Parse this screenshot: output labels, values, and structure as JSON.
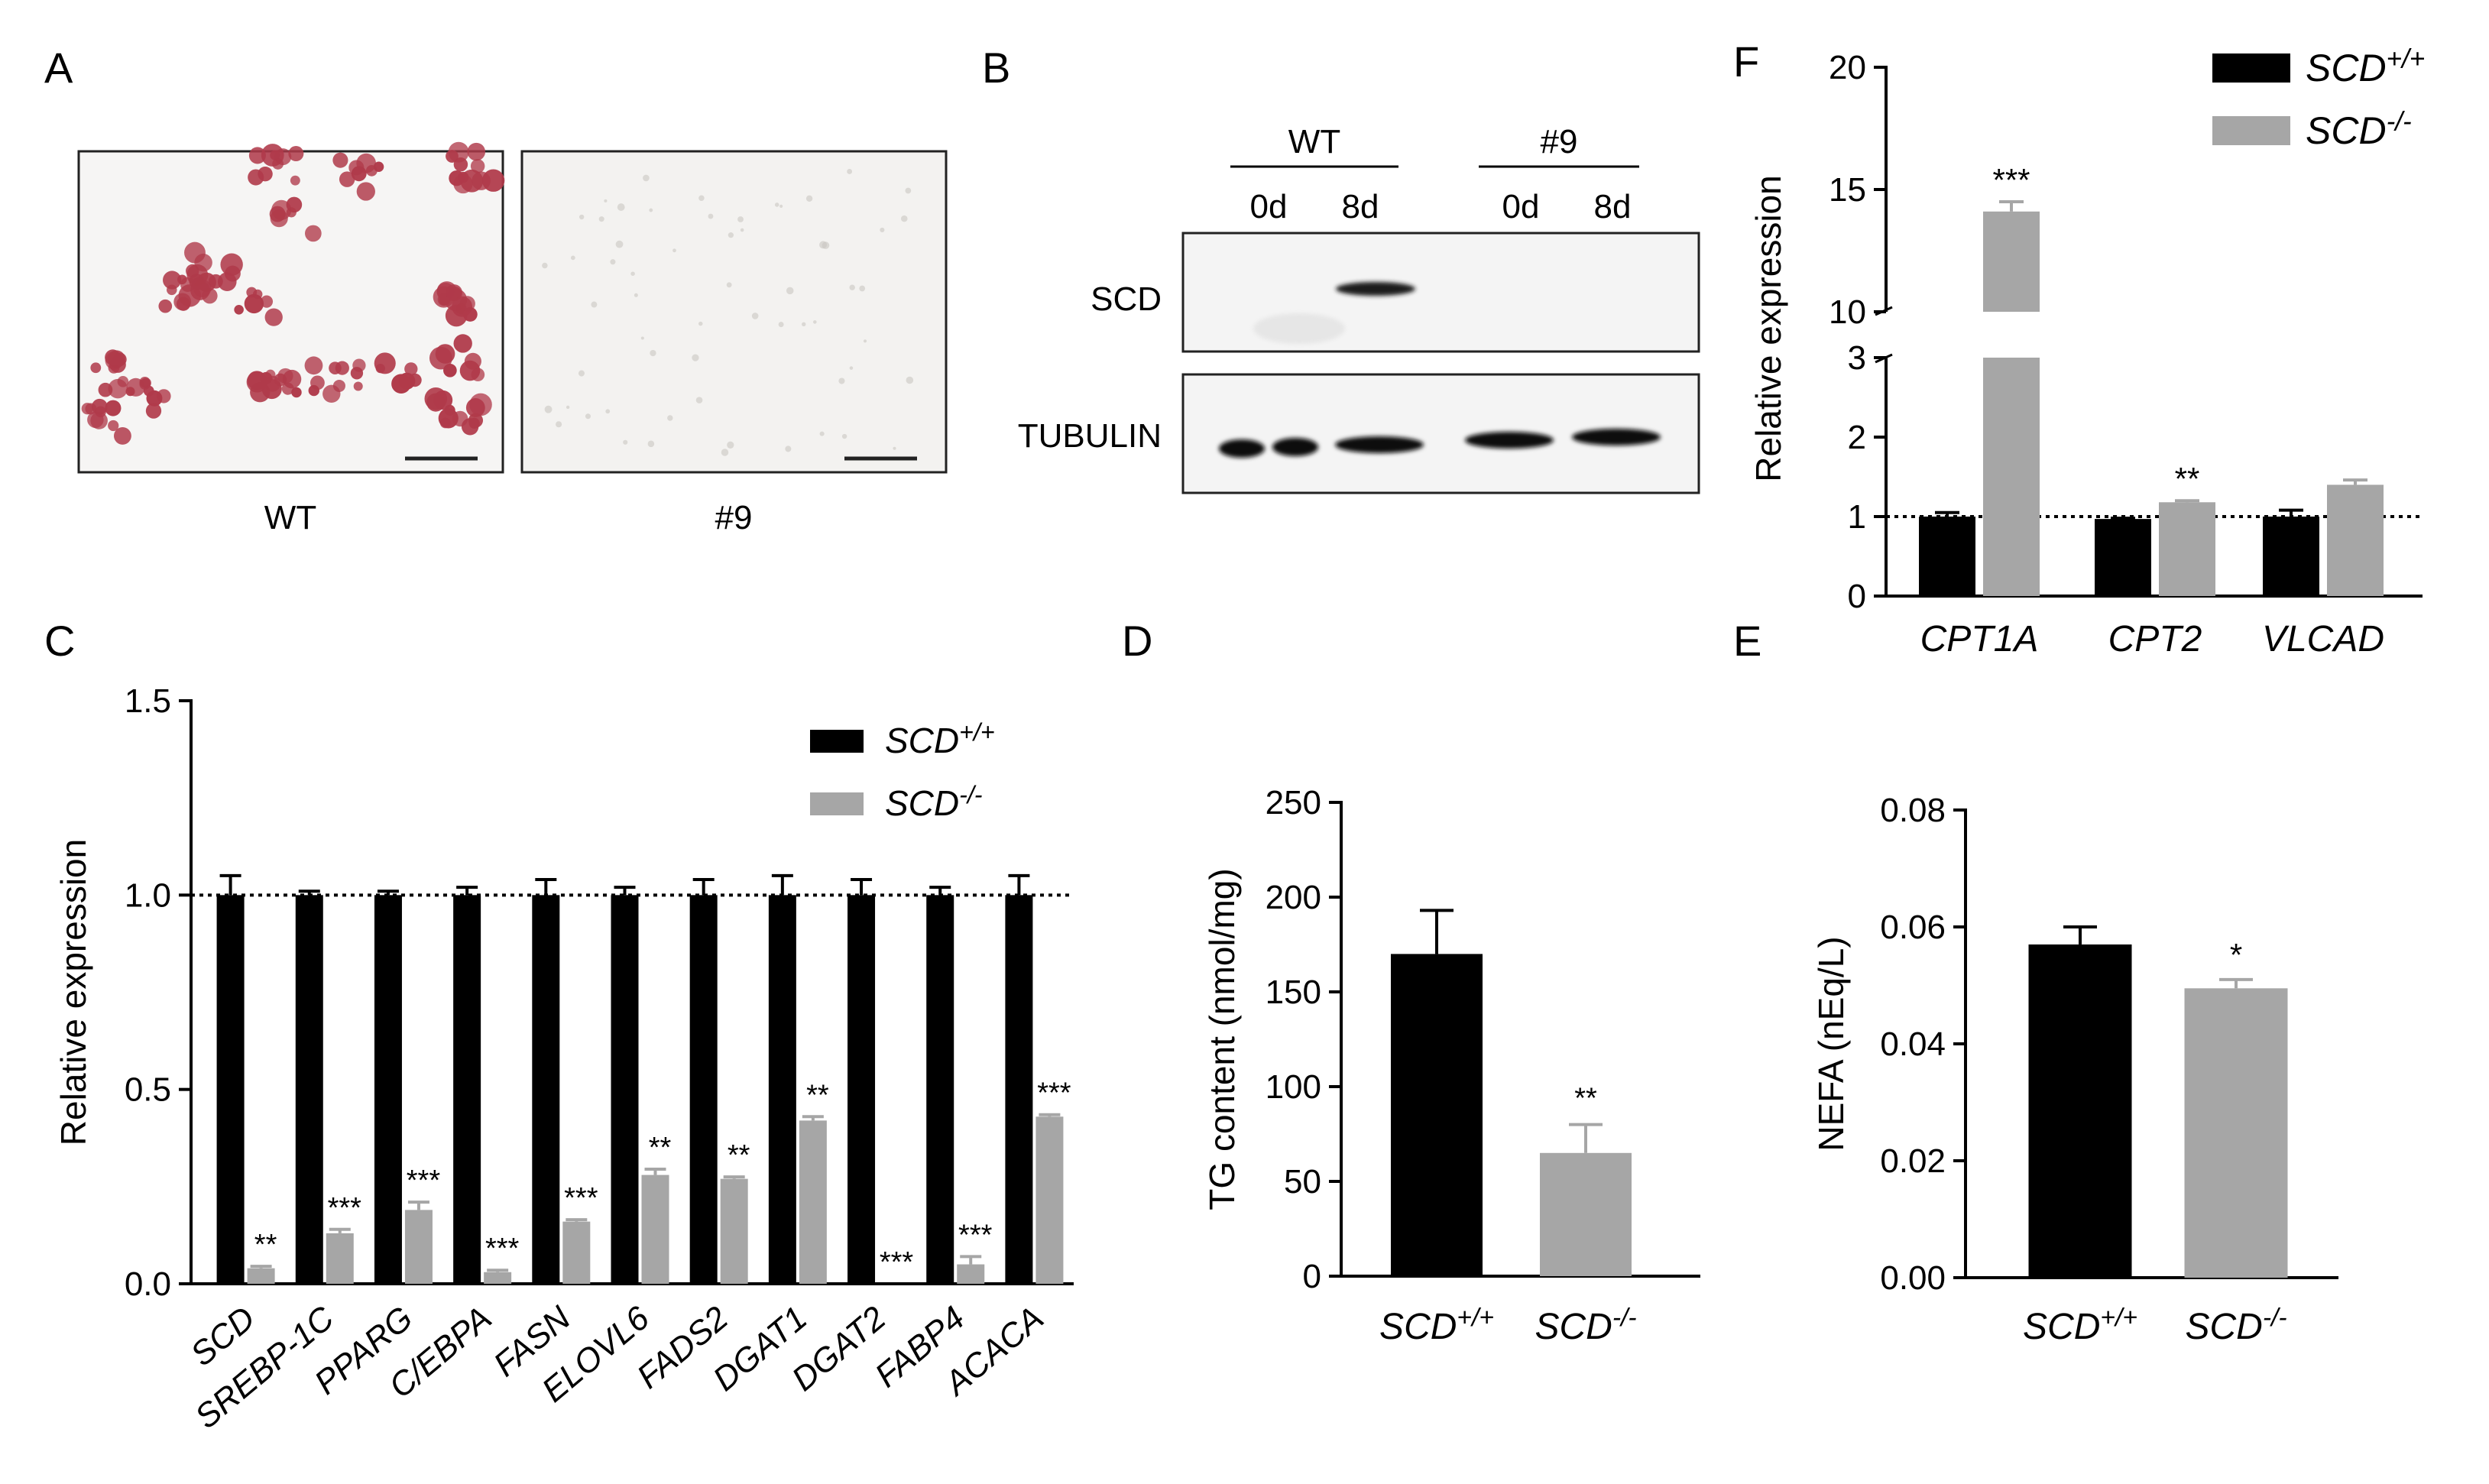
{
  "colors": {
    "wt": "#000000",
    "ko": "#a6a6a6",
    "stain": "#b03a4a"
  },
  "panels": {
    "A": {
      "letter": "A",
      "images": [
        {
          "label": "WT",
          "content": "oil red O stained differentiated cells"
        },
        {
          "label": "#9",
          "content": "unstained cells"
        }
      ]
    },
    "B": {
      "letter": "B",
      "groups": [
        {
          "label": "WT",
          "days": [
            "0d",
            "8d"
          ]
        },
        {
          "label": "#9",
          "days": [
            "0d",
            "8d"
          ]
        }
      ],
      "rows": [
        "SCD",
        "TUBULIN"
      ]
    }
  },
  "chart_data": [
    {
      "id": "C",
      "letter": "C",
      "type": "bar",
      "ylabel": "Relative expression",
      "ylim": [
        0,
        1.5
      ],
      "yticks": [
        0.0,
        0.5,
        1.0,
        1.5
      ],
      "ytick_labels": [
        "0.0",
        "0.5",
        "1.0",
        "1.5"
      ],
      "reference_line": 1.0,
      "categories": [
        "SCD",
        "SREBP-1C",
        "PPARG",
        "C/EBPA",
        "FASN",
        "ELOVL6",
        "FADS2",
        "DGAT1",
        "DGAT2",
        "FABP4",
        "ACACA"
      ],
      "series": [
        {
          "name": "SCD+/+",
          "base": "SCD",
          "sup": "+/+",
          "color": "#000000",
          "values": [
            1.0,
            1.0,
            1.0,
            1.0,
            1.0,
            1.0,
            1.0,
            1.0,
            1.0,
            1.0,
            1.0
          ],
          "errors": [
            0.05,
            0.01,
            0.01,
            0.02,
            0.04,
            0.02,
            0.04,
            0.05,
            0.04,
            0.02,
            0.05
          ]
        },
        {
          "name": "SCD-/-",
          "base": "SCD",
          "sup": "-/-",
          "color": "#a6a6a6",
          "values": [
            0.04,
            0.13,
            0.19,
            0.03,
            0.16,
            0.28,
            0.27,
            0.42,
            0.0,
            0.05,
            0.43
          ],
          "errors": [
            0.005,
            0.01,
            0.02,
            0.005,
            0.005,
            0.015,
            0.005,
            0.01,
            0.0,
            0.02,
            0.005
          ]
        }
      ],
      "significance": [
        "**",
        "***",
        "***",
        "***",
        "***",
        "**",
        "**",
        "**",
        "***",
        "***",
        "***"
      ],
      "legend": "top-right"
    },
    {
      "id": "D",
      "letter": "D",
      "type": "bar",
      "ylabel": "TG content (nmol/mg)",
      "ylim": [
        0,
        250
      ],
      "yticks": [
        0,
        50,
        100,
        150,
        200,
        250
      ],
      "ytick_labels": [
        "0",
        "50",
        "100",
        "150",
        "200",
        "250"
      ],
      "categories": [
        {
          "base": "SCD",
          "sup": "+/+"
        },
        {
          "base": "SCD",
          "sup": "-/-"
        }
      ],
      "values": [
        170,
        65
      ],
      "errors": [
        23,
        15
      ],
      "colors": [
        "#000000",
        "#a6a6a6"
      ],
      "significance": [
        "",
        "**"
      ]
    },
    {
      "id": "E",
      "letter": "E",
      "type": "bar",
      "ylabel": "NEFA (nEq/L)",
      "ylim": [
        0,
        0.08
      ],
      "yticks": [
        0,
        0.02,
        0.04,
        0.06,
        0.08
      ],
      "ytick_labels": [
        "0.00",
        "0.02",
        "0.04",
        "0.06",
        "0.08"
      ],
      "categories": [
        {
          "base": "SCD",
          "sup": "+/+"
        },
        {
          "base": "SCD",
          "sup": "-/-"
        }
      ],
      "values": [
        0.057,
        0.0495
      ],
      "errors": [
        0.003,
        0.0015
      ],
      "colors": [
        "#000000",
        "#a6a6a6"
      ],
      "significance": [
        "",
        "*"
      ]
    },
    {
      "id": "F",
      "letter": "F",
      "type": "bar",
      "ylabel": "Relative expression",
      "axis_break": [
        3,
        10
      ],
      "ylim": [
        0,
        20
      ],
      "yticks": [
        0,
        1,
        2,
        3,
        10,
        15,
        20
      ],
      "ytick_labels": [
        "0",
        "1",
        "2",
        "3",
        "10",
        "15",
        "20"
      ],
      "reference_line": 1.0,
      "categories": [
        "CPT1A",
        "CPT2",
        "VLCAD"
      ],
      "series": [
        {
          "name": "SCD+/+",
          "base": "SCD",
          "sup": "+/+",
          "color": "#000000",
          "values": [
            1.0,
            0.97,
            1.0
          ],
          "errors": [
            0.05,
            0.01,
            0.08
          ]
        },
        {
          "name": "SCD-/-",
          "base": "SCD",
          "sup": "-/-",
          "color": "#a6a6a6",
          "values": [
            14.1,
            1.18,
            1.4
          ],
          "errors": [
            0.4,
            0.02,
            0.06
          ]
        }
      ],
      "significance": [
        "***",
        "**",
        ""
      ],
      "legend": "top-right"
    }
  ]
}
